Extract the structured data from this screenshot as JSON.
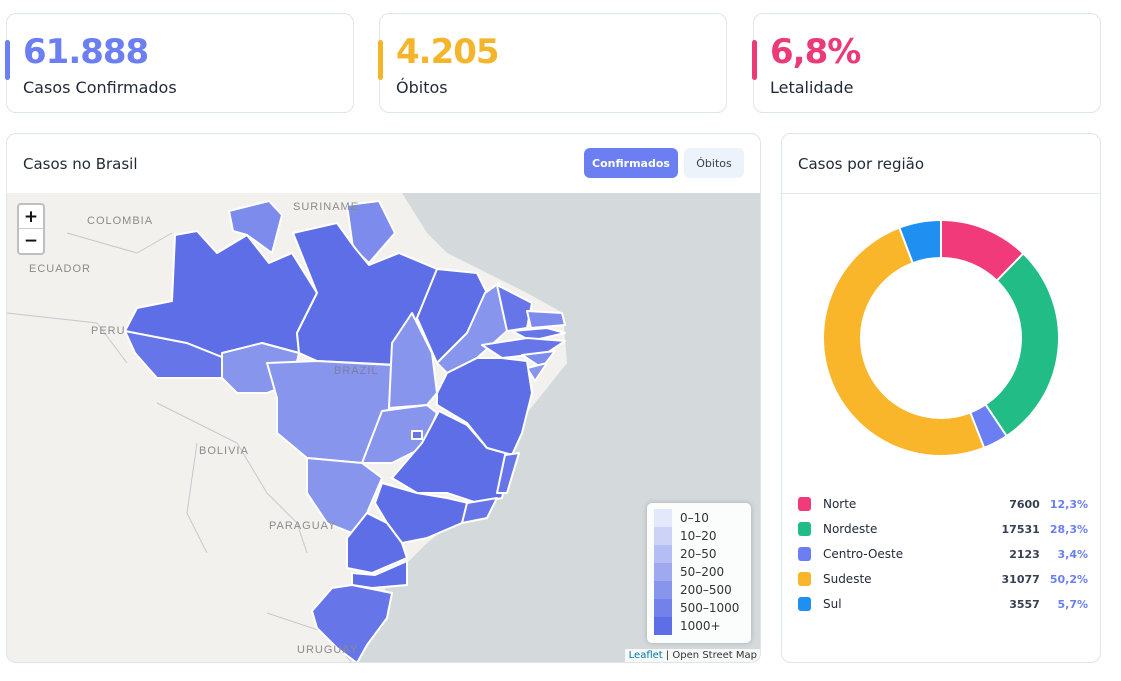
{
  "kpis": [
    {
      "value": "61.888",
      "label": "Casos Confirmados",
      "color": "#6b7ff2"
    },
    {
      "value": "4.205",
      "label": "Óbitos",
      "color": "#f5b52a"
    },
    {
      "value": "6,8%",
      "label": "Letalidade",
      "color": "#ec3a78"
    }
  ],
  "map_card": {
    "title": "Casos no Brasil",
    "tabs": [
      "Confirmados",
      "Óbitos"
    ],
    "active_tab": "Confirmados",
    "zoom_in": "+",
    "zoom_out": "−",
    "country_labels": [
      "COLOMBIA",
      "SURINAME",
      "ECUADOR",
      "PERU",
      "BRAZIL",
      "BOLIVIA",
      "PARAGUAY",
      "URUGUAY"
    ],
    "legend": [
      {
        "label": "0–10",
        "color": "#e4e8fb"
      },
      {
        "label": "10–20",
        "color": "#cdd3f7"
      },
      {
        "label": "20–50",
        "color": "#b4bdf4"
      },
      {
        "label": "50–200",
        "color": "#9ea9f0"
      },
      {
        "label": "200–500",
        "color": "#8795ed"
      },
      {
        "label": "500–1000",
        "color": "#7282ea"
      },
      {
        "label": "1000+",
        "color": "#5e6ee6"
      }
    ],
    "attribution_link": "Leaflet",
    "attribution_text": " | Open Street Map"
  },
  "region_card": {
    "title": "Casos por região",
    "chart_data": {
      "type": "pie",
      "categories": [
        "Norte",
        "Nordeste",
        "Centro-Oeste",
        "Sudeste",
        "Sul"
      ],
      "values": [
        7600,
        17531,
        2123,
        31077,
        3557
      ],
      "percent_labels": [
        "12,3%",
        "28,3%",
        "3,4%",
        "50,2%",
        "5,7%"
      ],
      "colors": [
        "#f03a7a",
        "#22bd86",
        "#6b7ff2",
        "#f9b62a",
        "#1f8ff2"
      ],
      "donut": true
    }
  }
}
